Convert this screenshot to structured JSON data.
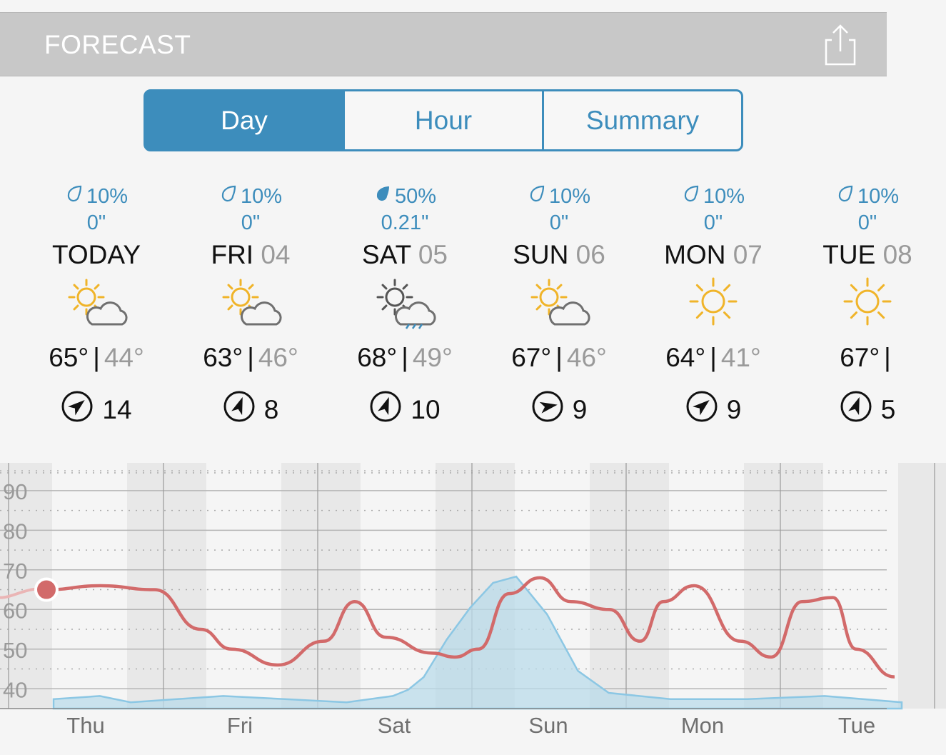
{
  "header": {
    "title": "FORECAST",
    "share_icon": "share-icon"
  },
  "tabs": [
    {
      "label": "Day",
      "active": true
    },
    {
      "label": "Hour",
      "active": false
    },
    {
      "label": "Summary",
      "active": false
    }
  ],
  "days": [
    {
      "precip": "10%",
      "amount": "0\"",
      "name": "TODAY",
      "date": "",
      "icon": "partly-cloudy-icon",
      "high": "65°",
      "low": "44°",
      "wind": "14",
      "wind_dir": "arrow-northeast-icon"
    },
    {
      "precip": "10%",
      "amount": "0\"",
      "name": "FRI",
      "date": "04",
      "icon": "partly-cloudy-icon",
      "high": "63°",
      "low": "46°",
      "wind": "8",
      "wind_dir": "arrow-north-icon"
    },
    {
      "precip": "50%",
      "amount": "0.21\"",
      "name": "SAT",
      "date": "05",
      "icon": "rain-icon",
      "high": "68°",
      "low": "49°",
      "wind": "10",
      "wind_dir": "arrow-north-icon"
    },
    {
      "precip": "10%",
      "amount": "0\"",
      "name": "SUN",
      "date": "06",
      "icon": "partly-cloudy-icon",
      "high": "67°",
      "low": "46°",
      "wind": "9",
      "wind_dir": "arrow-east-icon"
    },
    {
      "precip": "10%",
      "amount": "0\"",
      "name": "MON",
      "date": "07",
      "icon": "sunny-icon",
      "high": "64°",
      "low": "41°",
      "wind": "9",
      "wind_dir": "arrow-northeast-icon"
    },
    {
      "precip": "10%",
      "amount": "0\"",
      "name": "TUE",
      "date": "08",
      "icon": "sunny-icon",
      "high": "67°",
      "low": "",
      "wind": "5",
      "wind_dir": "arrow-north-icon"
    }
  ],
  "colors": {
    "accent": "#3d8dbc",
    "temp_line": "#d26a6a",
    "precip_fill": "#b9dbea"
  },
  "chart_data": {
    "type": "line",
    "y_ticks": [
      "90",
      "80",
      "70",
      "60",
      "50",
      "40"
    ],
    "ylim": [
      35,
      97
    ],
    "x_labels": [
      "Thu",
      "Fri",
      "Sat",
      "Sun",
      "Mon",
      "Tue"
    ],
    "series": [
      {
        "x": [
          0,
          0.35,
          0.7,
          1.0,
          1.2,
          1.5,
          1.8,
          2.0,
          2.2,
          2.5,
          2.65,
          2.8,
          3.0,
          3.2,
          3.4,
          3.65,
          3.85,
          4.0,
          4.2,
          4.5,
          4.7,
          4.9,
          5.1,
          5.25,
          5.5
        ],
        "y": [
          65,
          66,
          65,
          55,
          50,
          46,
          52,
          62,
          53,
          49,
          48,
          50,
          64,
          68,
          62,
          60,
          52,
          62,
          66,
          52,
          48,
          62,
          63,
          50,
          43
        ]
      }
    ],
    "precip_x": [
      0,
      0.3,
      0.5,
      0.8,
      1.1,
      1.5,
      1.9,
      2.2,
      2.3,
      2.4,
      2.55,
      2.7,
      2.85,
      3.0,
      3.2,
      3.4,
      3.6,
      4.0,
      4.5,
      5.0,
      5.5
    ],
    "precip_y": [
      3,
      4,
      2,
      3,
      4,
      3,
      2,
      4,
      6,
      10,
      22,
      32,
      40,
      42,
      30,
      12,
      5,
      3,
      3,
      4,
      2
    ],
    "current_value": 65
  }
}
